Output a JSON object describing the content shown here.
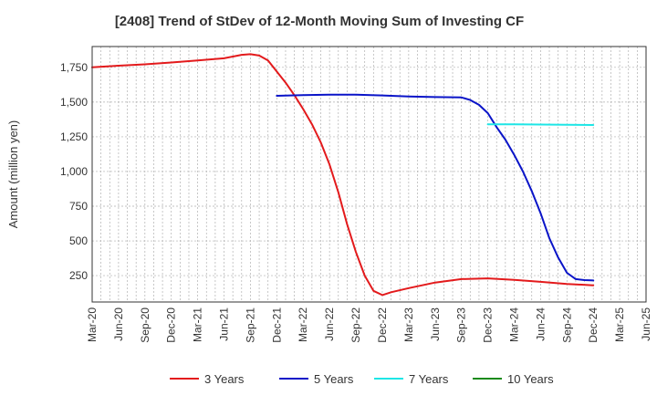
{
  "chart_data": {
    "type": "line",
    "title": "[2408]  Trend of StDev of 12-Month Moving Sum of Investing CF",
    "xlabel": "",
    "ylabel": "Amount (million yen)",
    "ylim": [
      60,
      1900
    ],
    "yticks": [
      250,
      500,
      750,
      1000,
      1250,
      1500,
      1750
    ],
    "ytick_labels": [
      "250",
      "500",
      "750",
      "1,000",
      "1,250",
      "1,500",
      "1,750"
    ],
    "xlim": [
      "2020-03",
      "2025-06"
    ],
    "xtick_labels": [
      "Mar-20",
      "Jun-20",
      "Sep-20",
      "Dec-20",
      "Mar-21",
      "Jun-21",
      "Sep-21",
      "Dec-21",
      "Mar-22",
      "Jun-22",
      "Sep-22",
      "Dec-22",
      "Mar-23",
      "Jun-23",
      "Sep-23",
      "Dec-23",
      "Mar-24",
      "Jun-24",
      "Sep-24",
      "Dec-24",
      "Mar-25",
      "Jun-25"
    ],
    "xticks": [
      "2020-03",
      "2020-06",
      "2020-09",
      "2020-12",
      "2021-03",
      "2021-06",
      "2021-09",
      "2021-12",
      "2022-03",
      "2022-06",
      "2022-09",
      "2022-12",
      "2023-03",
      "2023-06",
      "2023-09",
      "2023-12",
      "2024-03",
      "2024-06",
      "2024-09",
      "2024-12",
      "2025-03",
      "2025-06"
    ],
    "grid": true,
    "legend_position": "bottom",
    "series": [
      {
        "name": "3 Years",
        "color": "#e31a1c",
        "x": [
          "2020-03",
          "2020-06",
          "2020-09",
          "2020-12",
          "2021-03",
          "2021-06",
          "2021-07",
          "2021-08",
          "2021-09",
          "2021-10",
          "2021-11",
          "2021-12",
          "2022-01",
          "2022-02",
          "2022-03",
          "2022-04",
          "2022-05",
          "2022-06",
          "2022-07",
          "2022-08",
          "2022-09",
          "2022-10",
          "2022-11",
          "2022-12",
          "2023-01",
          "2023-03",
          "2023-06",
          "2023-09",
          "2023-12",
          "2024-03",
          "2024-06",
          "2024-09",
          "2024-12"
        ],
        "values": [
          1750,
          1762,
          1772,
          1785,
          1800,
          1815,
          1828,
          1840,
          1845,
          1835,
          1800,
          1720,
          1640,
          1550,
          1450,
          1340,
          1210,
          1050,
          850,
          620,
          420,
          250,
          140,
          110,
          130,
          160,
          200,
          225,
          230,
          220,
          205,
          190,
          180
        ]
      },
      {
        "name": "5 Years",
        "color": "#0a14c8",
        "x": [
          "2021-12",
          "2022-03",
          "2022-06",
          "2022-09",
          "2022-12",
          "2023-03",
          "2023-06",
          "2023-09",
          "2023-10",
          "2023-11",
          "2023-12",
          "2024-01",
          "2024-02",
          "2024-03",
          "2024-04",
          "2024-05",
          "2024-06",
          "2024-07",
          "2024-08",
          "2024-09",
          "2024-10",
          "2024-11",
          "2024-12"
        ],
        "values": [
          1545,
          1550,
          1553,
          1553,
          1548,
          1540,
          1536,
          1533,
          1515,
          1480,
          1420,
          1320,
          1230,
          1120,
          1000,
          860,
          700,
          520,
          380,
          270,
          225,
          218,
          215
        ]
      },
      {
        "name": "7 Years",
        "color": "#1ee6e6",
        "x": [
          "2023-12",
          "2024-03",
          "2024-06",
          "2024-09",
          "2024-12"
        ],
        "values": [
          1340,
          1340,
          1338,
          1336,
          1335
        ]
      },
      {
        "name": "10 Years",
        "color": "#1a8a1a",
        "x": [],
        "values": []
      }
    ]
  }
}
